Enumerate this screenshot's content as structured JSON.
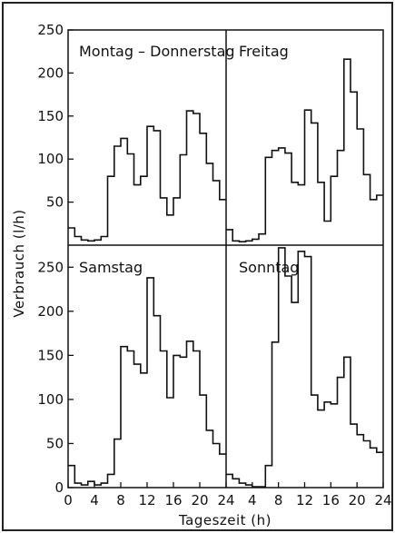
{
  "chart_data": {
    "type": "line",
    "subtype": "step",
    "xlabel": "Tageszeit (h)",
    "ylabel": "Verbrauch (l/h)",
    "x_ticks": [
      "0",
      "4",
      "8",
      "12",
      "16",
      "20",
      "24"
    ],
    "x_ticks_right": [
      "4",
      "8",
      "12",
      "16",
      "20",
      "24"
    ],
    "x_range": [
      0,
      24
    ],
    "grid": false,
    "panels": [
      {
        "title": "Montag – Donnerstag",
        "ylim": [
          0,
          250
        ],
        "y_ticks": [
          "50",
          "100",
          "150",
          "200",
          "250"
        ],
        "hours": [
          0,
          1,
          2,
          3,
          4,
          5,
          6,
          7,
          8,
          9,
          10,
          11,
          12,
          13,
          14,
          15,
          16,
          17,
          18,
          19,
          20,
          21,
          22,
          23
        ],
        "values": [
          20,
          10,
          6,
          5,
          6,
          10,
          80,
          115,
          124,
          106,
          70,
          80,
          138,
          133,
          55,
          35,
          55,
          105,
          156,
          153,
          130,
          95,
          75,
          53
        ]
      },
      {
        "title": "Freitag",
        "ylim": [
          0,
          250
        ],
        "hours": [
          0,
          1,
          2,
          3,
          4,
          5,
          6,
          7,
          8,
          9,
          10,
          11,
          12,
          13,
          14,
          15,
          16,
          17,
          18,
          19,
          20,
          21,
          22,
          23
        ],
        "values": [
          18,
          5,
          4,
          5,
          7,
          13,
          102,
          110,
          113,
          107,
          73,
          70,
          157,
          142,
          73,
          28,
          80,
          110,
          216,
          178,
          135,
          82,
          53,
          58
        ]
      },
      {
        "title": "Samstag",
        "ylim": [
          0,
          275
        ],
        "y_ticks": [
          "0",
          "50",
          "100",
          "150",
          "200",
          "250"
        ],
        "hours": [
          0,
          1,
          2,
          3,
          4,
          5,
          6,
          7,
          8,
          9,
          10,
          11,
          12,
          13,
          14,
          15,
          16,
          17,
          18,
          19,
          20,
          21,
          22,
          23
        ],
        "values": [
          25,
          5,
          3,
          7,
          3,
          5,
          15,
          55,
          160,
          155,
          140,
          130,
          238,
          195,
          155,
          102,
          150,
          148,
          166,
          155,
          105,
          65,
          50,
          38
        ]
      },
      {
        "title": "Sonntag",
        "ylim": [
          0,
          275
        ],
        "hours": [
          0,
          1,
          2,
          3,
          4,
          5,
          6,
          7,
          8,
          9,
          10,
          11,
          12,
          13,
          14,
          15,
          16,
          17,
          18,
          19,
          20,
          21,
          22,
          23
        ],
        "values": [
          15,
          10,
          5,
          3,
          1,
          1,
          25,
          165,
          272,
          240,
          210,
          268,
          262,
          105,
          88,
          97,
          95,
          125,
          148,
          72,
          60,
          53,
          45,
          40
        ]
      }
    ]
  }
}
